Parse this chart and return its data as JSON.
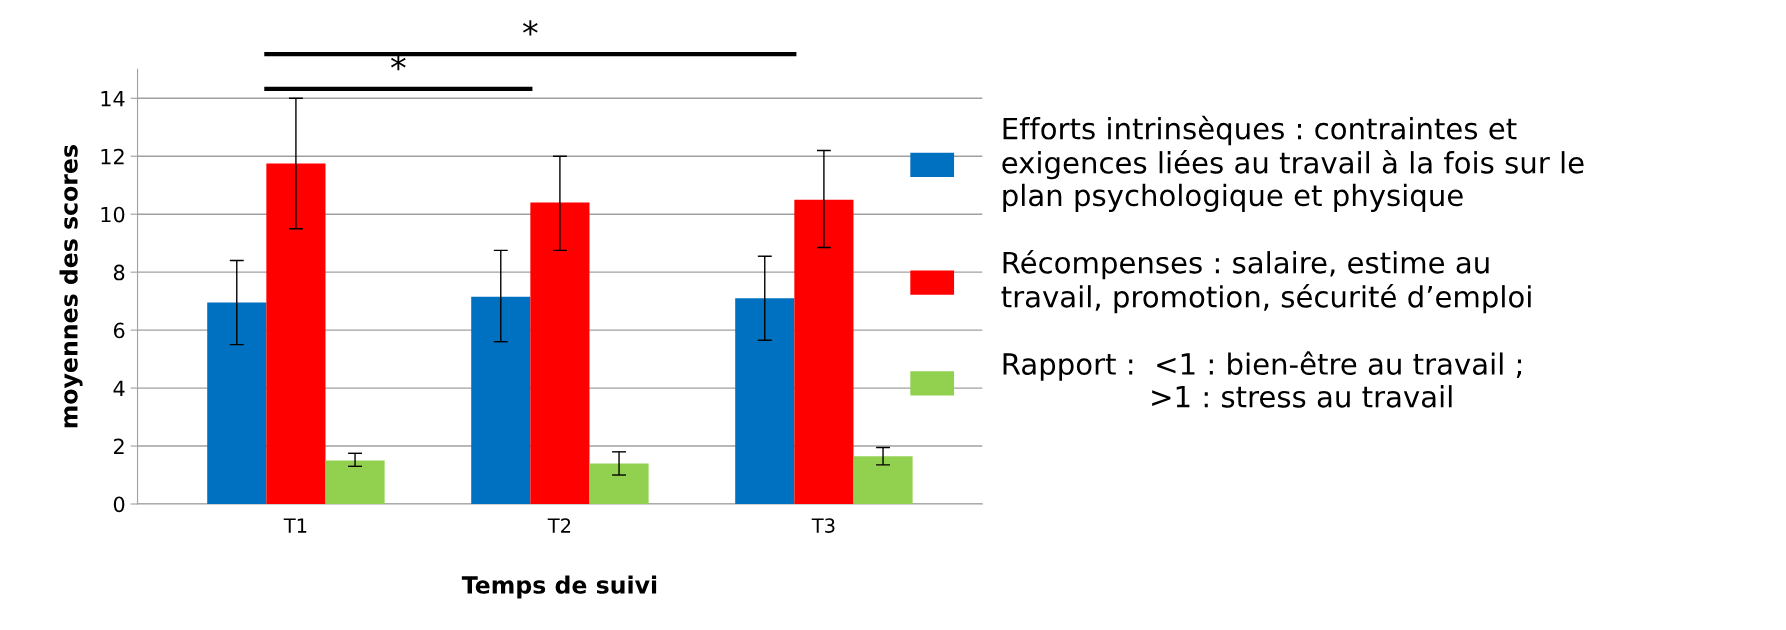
{
  "chart_data": {
    "type": "bar",
    "xlabel": "Temps de suivi",
    "ylabel": "moyennes des scores",
    "categories": [
      "T1",
      "T2",
      "T3"
    ],
    "series": [
      {
        "name": "Efforts intrinsèques : contraintes et\nexigences liées au travail à la fois sur le\nplan psychologique et physique",
        "color": "#0070c0",
        "values": [
          6.95,
          7.15,
          7.1
        ],
        "errors": [
          [
            5.5,
            8.4
          ],
          [
            5.6,
            8.75
          ],
          [
            5.65,
            8.55
          ]
        ]
      },
      {
        "name": "Récompenses : salaire, estime au\ntravail, promotion, sécurité d’emploi",
        "color": "#ff0000",
        "values": [
          11.75,
          10.4,
          10.5
        ],
        "errors": [
          [
            9.5,
            14.0
          ],
          [
            8.75,
            12.0
          ],
          [
            8.85,
            12.2
          ]
        ]
      },
      {
        "name": "Rapport :  <1 : bien-être au travail ;\n                >1 : stress au travail",
        "color": "#92d050",
        "values": [
          1.5,
          1.4,
          1.65
        ],
        "errors": [
          [
            1.3,
            1.75
          ],
          [
            1.0,
            1.8
          ],
          [
            1.35,
            1.95
          ]
        ]
      }
    ],
    "ylim": [
      0,
      15
    ],
    "yticks": [
      0,
      2,
      4,
      6,
      8,
      10,
      12,
      14
    ],
    "grid": "y",
    "legend": "right",
    "annotations": [
      "*",
      "*"
    ]
  }
}
